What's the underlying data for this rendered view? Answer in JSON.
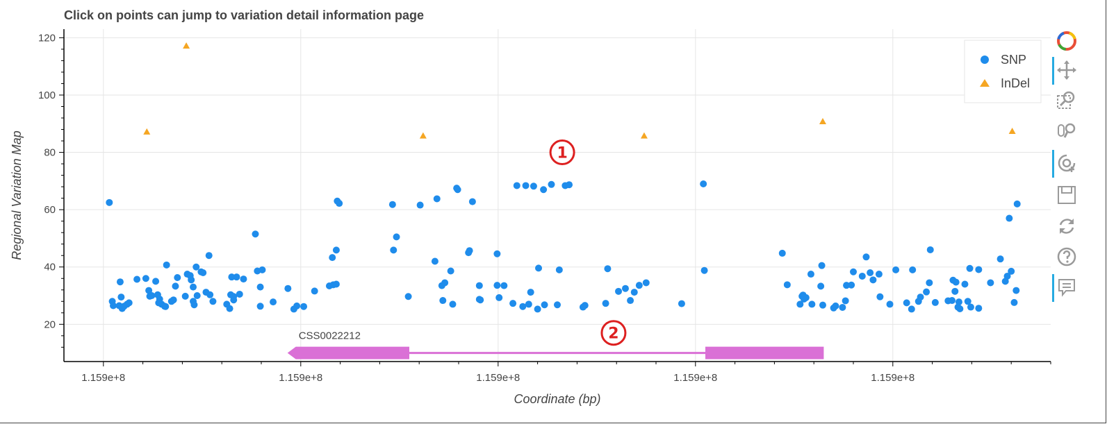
{
  "title": "Click on points can jump to variation detail information page",
  "chart_data": {
    "type": "scatter",
    "xlabel": "Coordinate (bp)",
    "ylabel": "Regional Variation Map",
    "xlim": [
      0,
      100
    ],
    "ylim": [
      7,
      123
    ],
    "x_tick_labels": [
      "1.159e+8",
      "1.159e+8",
      "1.159e+8",
      "1.159e+8",
      "1.159e+8"
    ],
    "x_tick_positions": [
      4,
      24,
      44,
      64,
      84
    ],
    "y_ticks": [
      20,
      40,
      60,
      80,
      100,
      120
    ],
    "grid": true,
    "legend_position": "top-right",
    "series": [
      {
        "name": "SNP",
        "marker": "circle",
        "color": "#1f8ceb",
        "points": [
          [
            4.6,
            62.5
          ],
          [
            4.9,
            28
          ],
          [
            5.0,
            26.5
          ],
          [
            5.6,
            26.5
          ],
          [
            5.7,
            34.8
          ],
          [
            5.8,
            29.5
          ],
          [
            5.9,
            25.5
          ],
          [
            6.1,
            26.3
          ],
          [
            6.4,
            27
          ],
          [
            6.6,
            27.5
          ],
          [
            7.4,
            35.7
          ],
          [
            8.3,
            36
          ],
          [
            8.6,
            31.8
          ],
          [
            8.7,
            29.8
          ],
          [
            8.9,
            30
          ],
          [
            9.3,
            35
          ],
          [
            9.5,
            30.3
          ],
          [
            9.6,
            27.5
          ],
          [
            9.7,
            28.8
          ],
          [
            9.9,
            27
          ],
          [
            10.2,
            26.3
          ],
          [
            10.3,
            26.2
          ],
          [
            10.4,
            40.7
          ],
          [
            10.9,
            28
          ],
          [
            11.1,
            28.5
          ],
          [
            11.3,
            33.3
          ],
          [
            11.5,
            36.3
          ],
          [
            12.3,
            29.8
          ],
          [
            12.5,
            37.5
          ],
          [
            12.8,
            37
          ],
          [
            12.9,
            35.5
          ],
          [
            13.1,
            33
          ],
          [
            13.1,
            28
          ],
          [
            13.2,
            26.8
          ],
          [
            13.4,
            40
          ],
          [
            13.5,
            30
          ],
          [
            13.9,
            38.3
          ],
          [
            14.1,
            38
          ],
          [
            14.4,
            31.2
          ],
          [
            14.7,
            44
          ],
          [
            14.8,
            30.3
          ],
          [
            15.1,
            28
          ],
          [
            16.5,
            27
          ],
          [
            16.8,
            25.5
          ],
          [
            16.9,
            30.3
          ],
          [
            17.0,
            36.5
          ],
          [
            17.2,
            28.5
          ],
          [
            17.2,
            29.7
          ],
          [
            17.5,
            36.5
          ],
          [
            17.8,
            30.5
          ],
          [
            18.2,
            35.8
          ],
          [
            19.4,
            51.5
          ],
          [
            19.6,
            38.6
          ],
          [
            19.9,
            26.3
          ],
          [
            19.9,
            33
          ],
          [
            20.1,
            39
          ],
          [
            21.2,
            27.8
          ],
          [
            22.7,
            32.5
          ],
          [
            23.3,
            25.3
          ],
          [
            23.6,
            26.4
          ],
          [
            24.3,
            26.2
          ],
          [
            25.4,
            31.6
          ],
          [
            26.9,
            33.4
          ],
          [
            27.2,
            43.3
          ],
          [
            27.3,
            33.8
          ],
          [
            27.6,
            34
          ],
          [
            27.6,
            45.9
          ],
          [
            27.7,
            63
          ],
          [
            27.9,
            62.2
          ],
          [
            33.3,
            61.8
          ],
          [
            33.4,
            45.9
          ],
          [
            33.7,
            50.5
          ],
          [
            34.9,
            29.7
          ],
          [
            36.1,
            61.6
          ],
          [
            37.6,
            42
          ],
          [
            37.8,
            63.8
          ],
          [
            38.3,
            33.5
          ],
          [
            38.4,
            28.3
          ],
          [
            38.6,
            34.5
          ],
          [
            39.2,
            38.6
          ],
          [
            39.4,
            27
          ],
          [
            39.8,
            67.5
          ],
          [
            39.9,
            67
          ],
          [
            41.0,
            45
          ],
          [
            41.1,
            45.7
          ],
          [
            41.4,
            62.8
          ],
          [
            42.1,
            33.5
          ],
          [
            42.1,
            28.7
          ],
          [
            42.2,
            28.5
          ],
          [
            43.9,
            44.6
          ],
          [
            43.9,
            33.6
          ],
          [
            44.1,
            29.3
          ],
          [
            44.6,
            33.5
          ],
          [
            45.5,
            27.3
          ],
          [
            45.9,
            68.4
          ],
          [
            46.5,
            26.2
          ],
          [
            46.8,
            68.4
          ],
          [
            47.1,
            27
          ],
          [
            47.3,
            31.2
          ],
          [
            47.6,
            68.2
          ],
          [
            48.0,
            25.3
          ],
          [
            48.1,
            39.6
          ],
          [
            48.7,
            26.8
          ],
          [
            48.6,
            67
          ],
          [
            49.4,
            68.8
          ],
          [
            50.0,
            26.8
          ],
          [
            50.2,
            39
          ],
          [
            50.8,
            68.4
          ],
          [
            51.2,
            68.7
          ],
          [
            52.6,
            26
          ],
          [
            52.8,
            26.6
          ],
          [
            54.9,
            27.3
          ],
          [
            55.1,
            39.4
          ],
          [
            56.2,
            31.5
          ],
          [
            56.9,
            32.5
          ],
          [
            57.4,
            28.3
          ],
          [
            57.8,
            31.2
          ],
          [
            58.3,
            33.6
          ],
          [
            59.0,
            34.5
          ],
          [
            62.6,
            27.2
          ],
          [
            64.8,
            69
          ],
          [
            64.9,
            38.8
          ],
          [
            72.8,
            44.8
          ],
          [
            73.3,
            33.8
          ],
          [
            74.6,
            27
          ],
          [
            74.8,
            29.8
          ],
          [
            74.9,
            30.2
          ],
          [
            75.0,
            28.8
          ],
          [
            75.2,
            29.3
          ],
          [
            75.7,
            37.5
          ],
          [
            75.8,
            27
          ],
          [
            76.7,
            33.3
          ],
          [
            76.8,
            40.5
          ],
          [
            76.9,
            26.7
          ],
          [
            78.0,
            25.7
          ],
          [
            78.2,
            26.4
          ],
          [
            78.9,
            25.9
          ],
          [
            79.2,
            28.2
          ],
          [
            79.3,
            33.6
          ],
          [
            79.8,
            33.7
          ],
          [
            80.0,
            38.3
          ],
          [
            80.9,
            36.8
          ],
          [
            81.3,
            43.5
          ],
          [
            81.7,
            38
          ],
          [
            82.0,
            35.5
          ],
          [
            82.7,
            29.6
          ],
          [
            82.6,
            37.5
          ],
          [
            83.7,
            27
          ],
          [
            84.3,
            39
          ],
          [
            85.4,
            27.5
          ],
          [
            85.9,
            25.3
          ],
          [
            86.0,
            39
          ],
          [
            86.6,
            28
          ],
          [
            86.8,
            29.5
          ],
          [
            87.4,
            31.3
          ],
          [
            87.7,
            34.5
          ],
          [
            87.8,
            46
          ],
          [
            88.3,
            27.6
          ],
          [
            89.6,
            28.2
          ],
          [
            90.1,
            35.4
          ],
          [
            90.0,
            28.3
          ],
          [
            90.3,
            31.5
          ],
          [
            90.4,
            34.7
          ],
          [
            90.7,
            27.8
          ],
          [
            90.6,
            26
          ],
          [
            90.8,
            25.4
          ],
          [
            91.3,
            34
          ],
          [
            91.6,
            28
          ],
          [
            91.8,
            39.5
          ],
          [
            91.9,
            26
          ],
          [
            92.7,
            39.1
          ],
          [
            92.7,
            25.6
          ],
          [
            93.9,
            34.5
          ],
          [
            94.9,
            42.8
          ],
          [
            95.4,
            35
          ],
          [
            95.6,
            36.8
          ],
          [
            95.8,
            57
          ],
          [
            96.0,
            38.5
          ],
          [
            96.3,
            27.6
          ],
          [
            96.5,
            31.8
          ],
          [
            96.6,
            62
          ]
        ]
      },
      {
        "name": "InDel",
        "marker": "triangle",
        "color": "#f5a623",
        "points": [
          [
            8.4,
            87.2
          ],
          [
            12.4,
            117.2
          ],
          [
            36.4,
            85.8
          ],
          [
            58.8,
            85.8
          ],
          [
            76.9,
            90.8
          ],
          [
            96.1,
            87.4
          ]
        ]
      }
    ],
    "gene": {
      "label": "CSS0022212",
      "direction": "reverse",
      "intron": [
        35,
        65
      ],
      "exons": [
        [
          23.5,
          35
        ],
        [
          65,
          77
        ]
      ],
      "y": 10,
      "color": "#da70d6"
    },
    "annotations": [
      {
        "text": "①",
        "x": 50.5,
        "y": 80
      },
      {
        "text": "②",
        "x": 55.7,
        "y": 17
      }
    ]
  },
  "toolbar": {
    "tools": [
      {
        "name": "bokeh-logo-icon",
        "active": false
      },
      {
        "name": "pan-icon",
        "active": true
      },
      {
        "name": "box-zoom-icon",
        "active": false
      },
      {
        "name": "wheel-zoom-icon",
        "active": false
      },
      {
        "name": "tap-icon",
        "active": true
      },
      {
        "name": "save-icon",
        "active": false
      },
      {
        "name": "reset-icon",
        "active": false
      },
      {
        "name": "help-icon",
        "active": false
      },
      {
        "name": "hover-icon",
        "active": true
      }
    ]
  }
}
